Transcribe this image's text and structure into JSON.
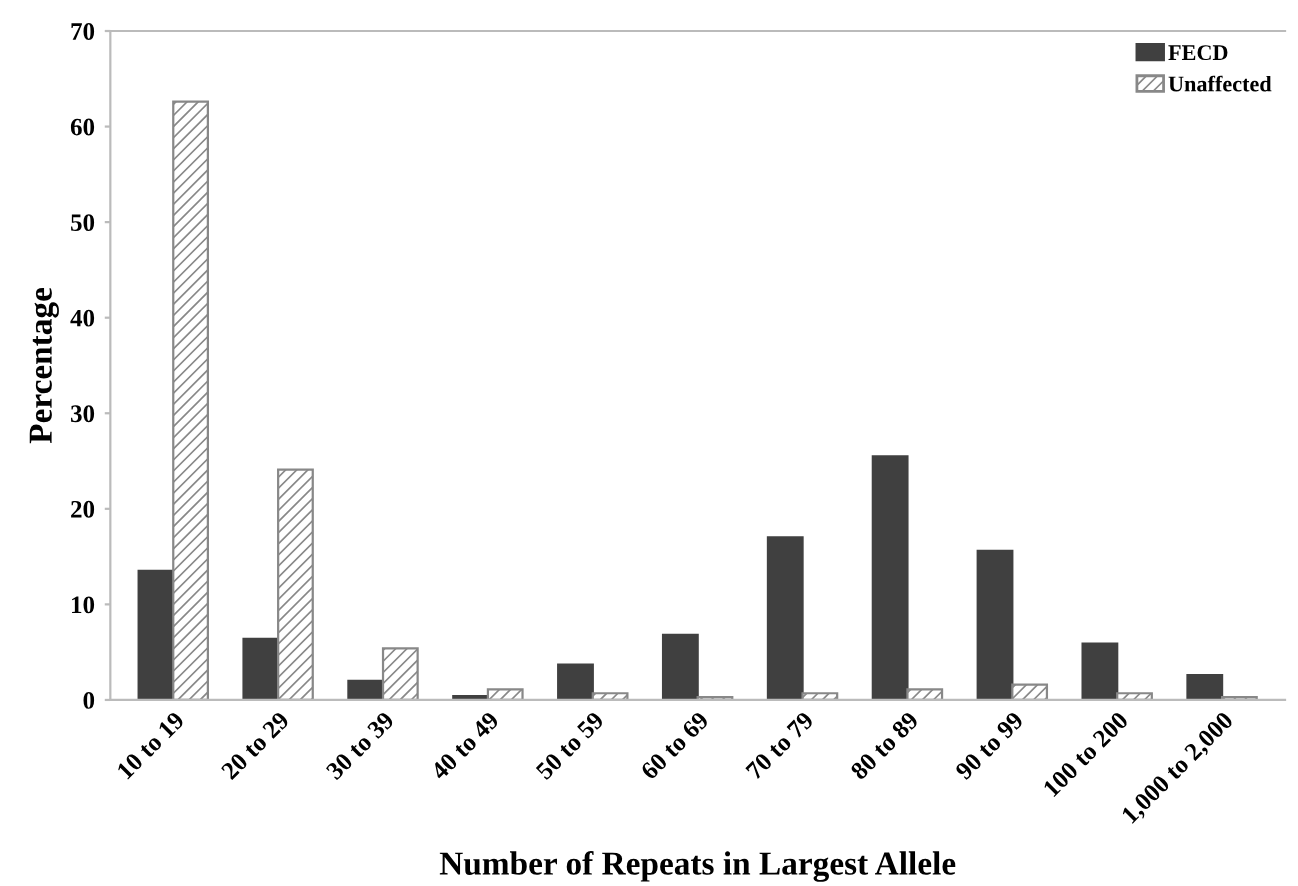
{
  "chart_data": {
    "type": "bar",
    "xlabel": "Number of Repeats in Largest Allele",
    "ylabel": "Percentage",
    "categories": [
      "10 to 19",
      "20 to 29",
      "30 to 39",
      "40 to 49",
      "50 to 59",
      "60 to 69",
      "70 to 79",
      "80 to 89",
      "90 to 99",
      "100 to 200",
      "1,000 to 2,000"
    ],
    "series": [
      {
        "name": "FECD",
        "color": "#404040",
        "values": [
          13.5,
          6.4,
          2.0,
          0.4,
          3.7,
          6.8,
          17.0,
          25.5,
          15.6,
          5.9,
          2.6
        ]
      },
      {
        "name": "Unaffected",
        "color": "#888888",
        "values": [
          62.6,
          24.1,
          5.4,
          1.1,
          0.7,
          0.3,
          0.7,
          1.1,
          1.6,
          0.7,
          0.3
        ]
      }
    ],
    "ylim": [
      0,
      70
    ],
    "yticks": [
      0,
      10,
      20,
      30,
      40,
      50,
      60,
      70
    ],
    "grid": false,
    "legend": "top right"
  }
}
